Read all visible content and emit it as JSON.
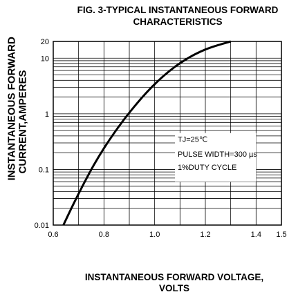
{
  "chart_data": {
    "type": "line",
    "title": "FIG. 3-TYPICAL INSTANTANEOUS FORWARD",
    "subtitle": "CHARACTERISTICS",
    "xlabel_line1": "INSTANTANEOUS FORWARD VOLTAGE,",
    "xlabel_line2": "VOLTS",
    "ylabel_line1": "INSTANTANEOUS FORWARD",
    "ylabel_line2": "CURRENT,AMPERES",
    "xlim": [
      0.6,
      1.5
    ],
    "ylim": [
      0.01,
      20
    ],
    "yscale": "log",
    "grid": true,
    "x_ticks": [
      "0.6",
      "0.8",
      "1.0",
      "1.2",
      "1.4",
      "1.5"
    ],
    "y_ticks": [
      "0.01",
      "0.1",
      "1",
      "10",
      "20"
    ],
    "annotation": [
      "TJ=25℃",
      "PULSE WIDTH=300 µs",
      "1%DUTY CYCLE"
    ],
    "series": [
      {
        "x": [
          0.64,
          0.68,
          0.72,
          0.76,
          0.8,
          0.84,
          0.88,
          0.92,
          0.96,
          1.0,
          1.04,
          1.08,
          1.12,
          1.16,
          1.2,
          1.24,
          1.3
        ],
        "y": [
          0.01,
          0.024,
          0.055,
          0.12,
          0.24,
          0.45,
          0.8,
          1.35,
          2.2,
          3.4,
          5.0,
          7.0,
          9.3,
          11.8,
          14.3,
          16.6,
          20
        ]
      }
    ]
  }
}
